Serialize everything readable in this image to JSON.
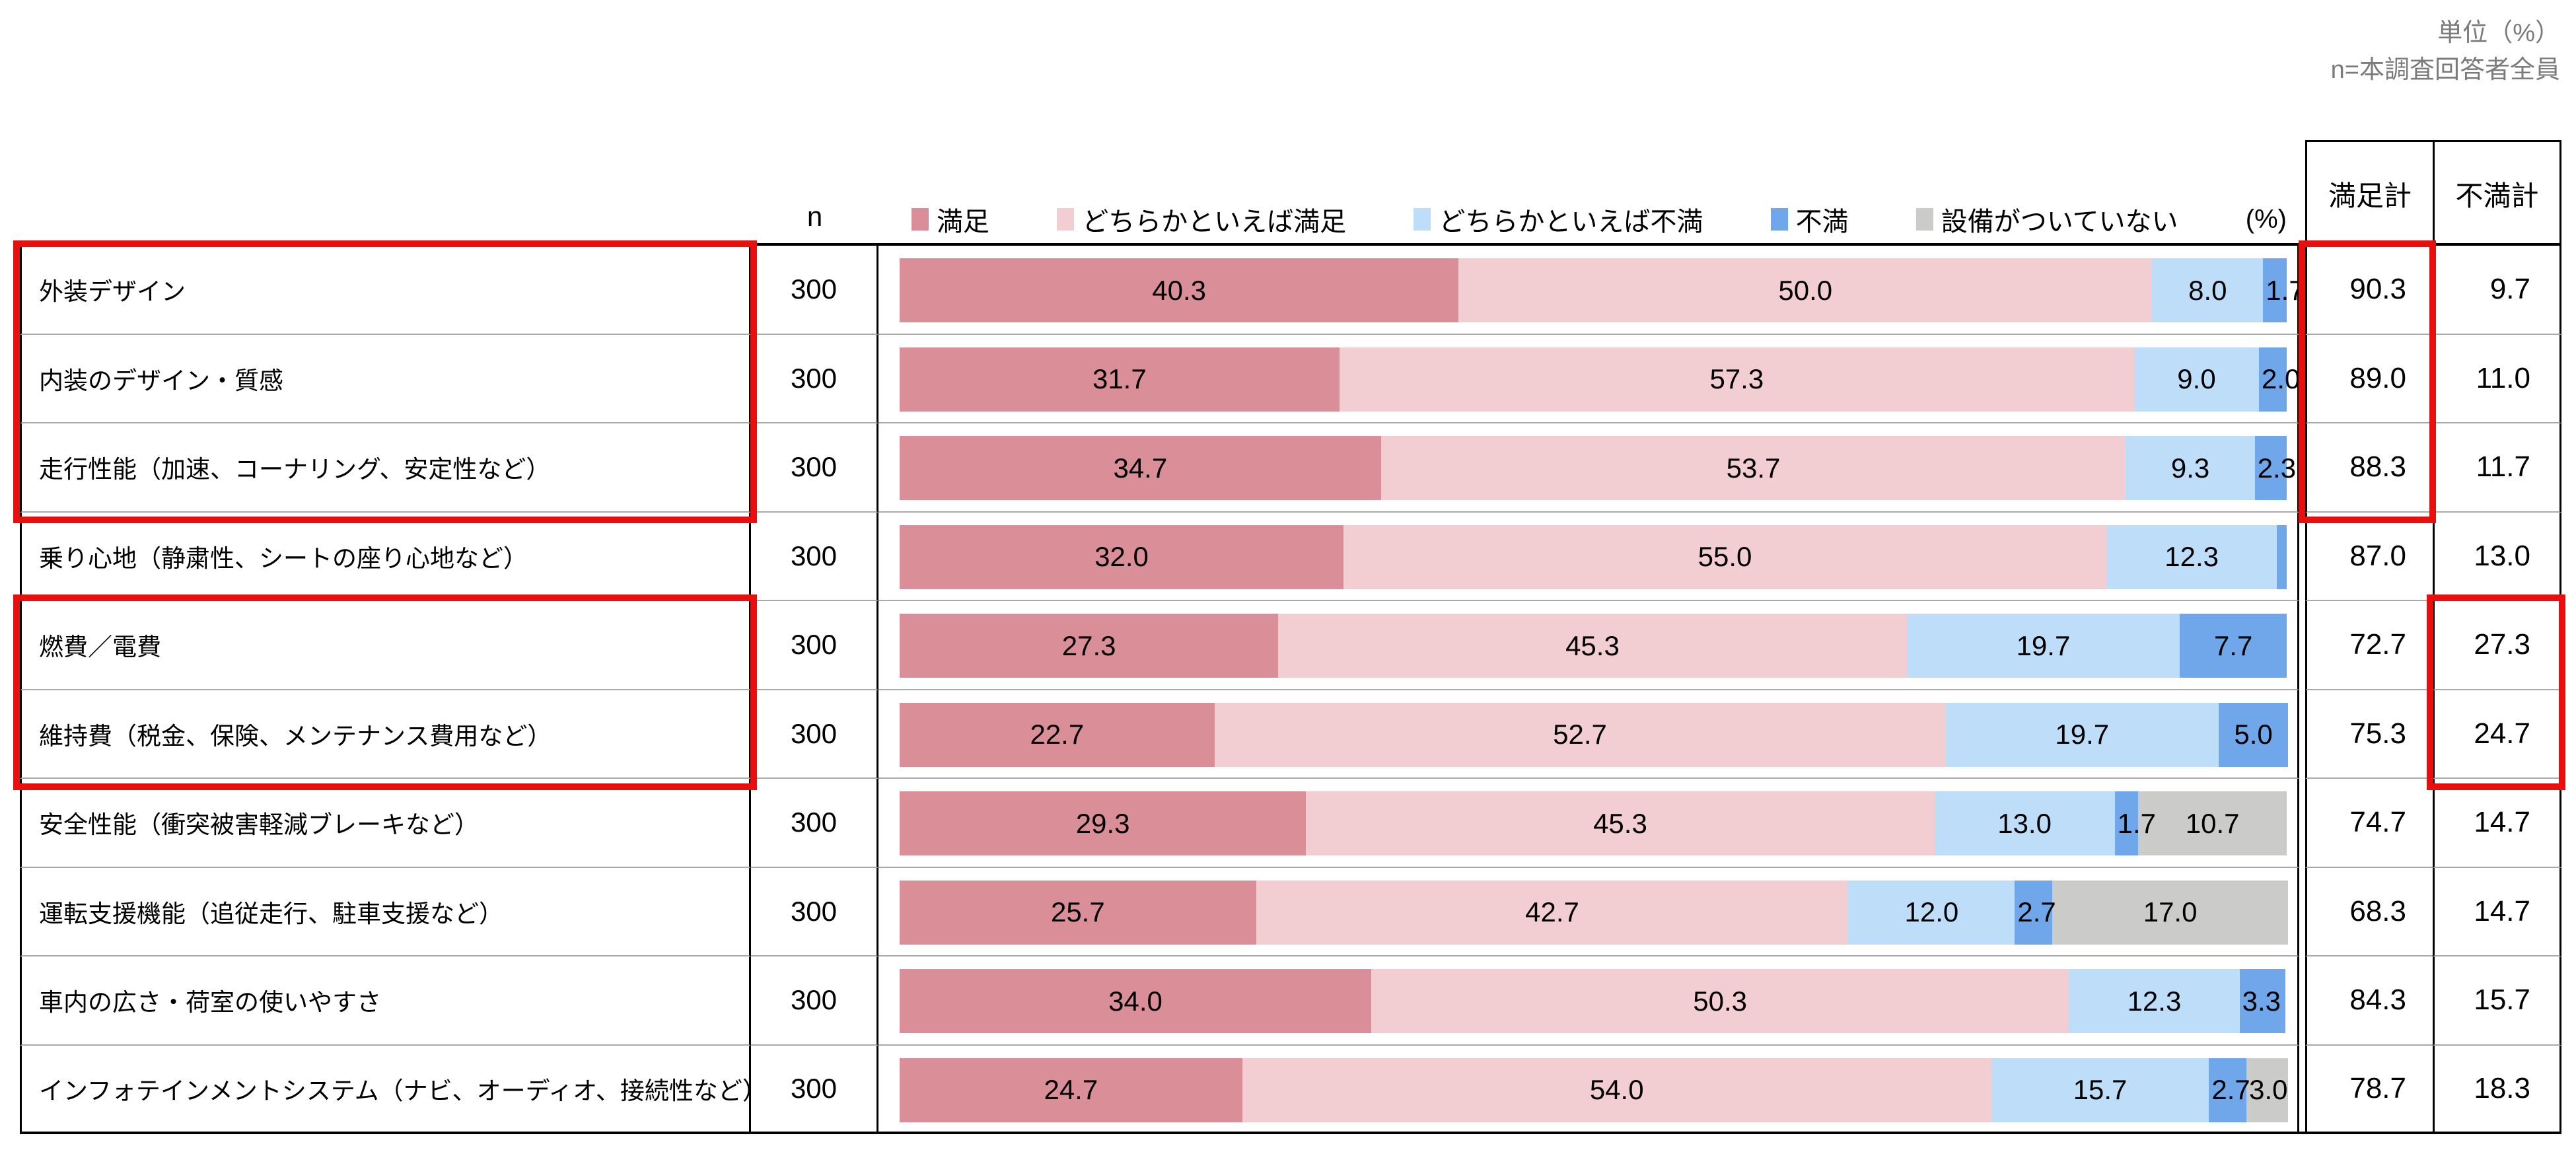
{
  "unit_note": {
    "line1": "単位（%）",
    "line2": "n=本調査回答者全員"
  },
  "table_header": {
    "n": "n",
    "percent": "(%)",
    "satisfied_total": "満足計",
    "dissatisfied_total": "不満計"
  },
  "legend": [
    {
      "label": "満足",
      "color": "#D98E98"
    },
    {
      "label": "どちらかといえば満足",
      "color": "#F2CDD1"
    },
    {
      "label": "どちらかといえば不満",
      "color": "#BEDDF8"
    },
    {
      "label": "不満",
      "color": "#6FA7EA"
    },
    {
      "label": "設備がついていない",
      "color": "#CBCBCA"
    }
  ],
  "chart_data": {
    "type": "bar",
    "subtype": "horizontal_stacked_100pct",
    "unit": "%",
    "xlim": [
      0,
      100
    ],
    "categories": [
      "外装デザイン",
      "内装のデザイン・質感",
      "走行性能（加速、コーナリング、安定性など）",
      "乗り心地（静粛性、シートの座り心地など）",
      "燃費／電費",
      "維持費（税金、保険、メンテナンス費用など）",
      "安全性能（衝突被害軽減ブレーキなど）",
      "運転支援機能（追従走行、駐車支援など）",
      "車内の広さ・荷室の使いやすさ",
      "インフォテインメントシステム（ナビ、オーディオ、接続性など）"
    ],
    "n": [
      300,
      300,
      300,
      300,
      300,
      300,
      300,
      300,
      300,
      300
    ],
    "series": [
      {
        "name": "満足",
        "color": "#D98E98",
        "values": [
          40.3,
          31.7,
          34.7,
          32.0,
          27.3,
          22.7,
          29.3,
          25.7,
          34.0,
          24.7
        ]
      },
      {
        "name": "どちらかといえば満足",
        "color": "#F2CDD1",
        "values": [
          50.0,
          57.3,
          53.7,
          55.0,
          45.3,
          52.7,
          45.3,
          42.7,
          50.3,
          54.0
        ]
      },
      {
        "name": "どちらかといえば不満",
        "color": "#BEDDF8",
        "values": [
          8.0,
          9.0,
          9.3,
          12.3,
          19.7,
          19.7,
          13.0,
          12.0,
          12.3,
          15.7
        ]
      },
      {
        "name": "不満",
        "color": "#6FA7EA",
        "values": [
          1.7,
          2.0,
          2.3,
          0.7,
          7.7,
          5.0,
          1.7,
          2.7,
          3.3,
          2.7
        ]
      },
      {
        "name": "設備がついていない",
        "color": "#CBCBCA",
        "values": [
          0,
          0,
          0,
          0,
          0,
          0,
          10.7,
          17.0,
          0,
          3.0
        ]
      }
    ],
    "unlabeled_segments": [
      {
        "row": 3,
        "series": 3
      }
    ],
    "totals": {
      "satisfied": [
        "90.3",
        "89.0",
        "88.3",
        "87.0",
        "72.7",
        "75.3",
        "74.7",
        "68.3",
        "84.3",
        "78.7"
      ],
      "dissatisfied": [
        "9.7",
        "11.0",
        "11.7",
        "13.0",
        "27.3",
        "24.7",
        "14.7",
        "14.7",
        "15.7",
        "18.3"
      ]
    }
  },
  "highlights": {
    "color": "#E8100F",
    "boxes": [
      "category labels rows 1-3 (外装デザイン・内装のデザイン・質感・走行性能)",
      "満足計 values rows 1-3 (90.3 / 89.0 / 88.3)",
      "category labels rows 5-6 (燃費／電費・維持費)",
      "不満計 values rows 5-6 (27.3 / 24.7)"
    ]
  },
  "colors": {
    "border": "#000000",
    "row_divider": "#A9A9A9",
    "note_gray": "#7B7B7B",
    "background": "#FFFFFF"
  }
}
